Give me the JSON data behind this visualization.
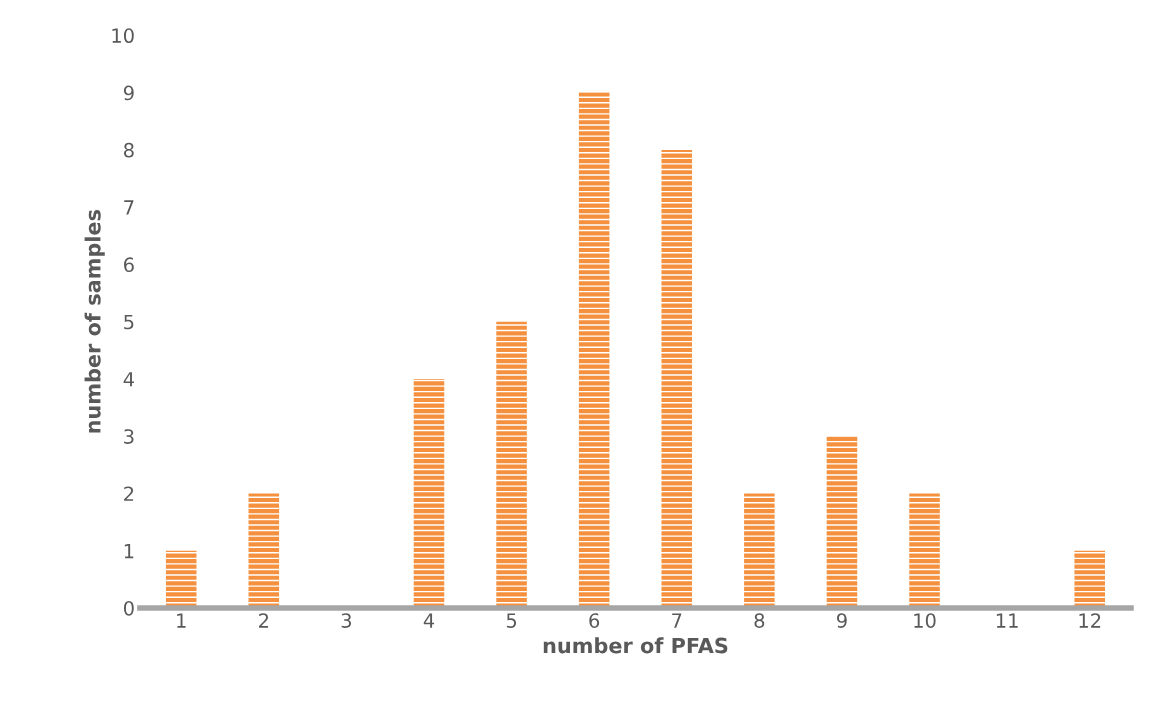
{
  "chart_data": {
    "type": "bar",
    "xlabel": "number of PFAS",
    "ylabel": "number of samples",
    "categories": [
      "1",
      "2",
      "3",
      "4",
      "5",
      "6",
      "7",
      "8",
      "9",
      "10",
      "11",
      "12"
    ],
    "values": [
      1,
      2,
      0,
      4,
      5,
      9,
      8,
      2,
      3,
      2,
      0,
      1
    ],
    "color": "#f5913e",
    "ylim": [
      0,
      10
    ],
    "yticks": [
      0,
      1,
      2,
      3,
      4,
      5,
      6,
      7,
      8,
      9,
      10
    ],
    "grid": false,
    "legend": false
  }
}
